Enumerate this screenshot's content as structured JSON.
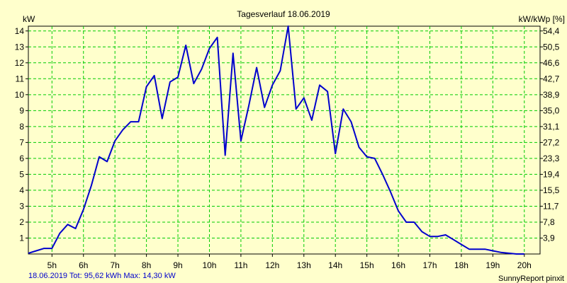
{
  "chart_data": {
    "type": "line",
    "title": "Tagesverlauf 18.06.2019",
    "y_left_label": "kW",
    "y_right_label": "kW/kWp [%]",
    "x_tick_labels": [
      "5h",
      "6h",
      "7h",
      "8h",
      "9h",
      "10h",
      "11h",
      "12h",
      "13h",
      "14h",
      "15h",
      "16h",
      "17h",
      "18h",
      "19h",
      "20h"
    ],
    "y_left_ticks": [
      "1",
      "2",
      "3",
      "4",
      "5",
      "6",
      "7",
      "8",
      "9",
      "10",
      "11",
      "12",
      "13",
      "14"
    ],
    "y_right_ticks": [
      "3,9",
      "7,8",
      "11,7",
      "15,5",
      "19,4",
      "23,3",
      "27,2",
      "31,1",
      "35,0",
      "38,9",
      "42,7",
      "46,6",
      "50,5",
      "54,4"
    ],
    "xlim": [
      4.25,
      20.5
    ],
    "ylim": [
      0,
      14.3
    ],
    "grid": true,
    "line_color": "#0000cc",
    "grid_color": "#00cc00",
    "background": "#ffffcc",
    "series": [
      {
        "points": [
          [
            4.25,
            0.05
          ],
          [
            4.5,
            0.2
          ],
          [
            4.75,
            0.35
          ],
          [
            5.0,
            0.35
          ],
          [
            5.25,
            1.3
          ],
          [
            5.5,
            1.85
          ],
          [
            5.75,
            1.6
          ],
          [
            6.0,
            2.8
          ],
          [
            6.25,
            4.3
          ],
          [
            6.5,
            6.1
          ],
          [
            6.75,
            5.8
          ],
          [
            7.0,
            7.1
          ],
          [
            7.25,
            7.8
          ],
          [
            7.5,
            8.3
          ],
          [
            7.75,
            8.3
          ],
          [
            8.0,
            10.5
          ],
          [
            8.25,
            11.2
          ],
          [
            8.5,
            8.5
          ],
          [
            8.75,
            10.8
          ],
          [
            9.0,
            11.1
          ],
          [
            9.25,
            13.1
          ],
          [
            9.5,
            10.7
          ],
          [
            9.75,
            11.6
          ],
          [
            10.0,
            12.9
          ],
          [
            10.25,
            13.6
          ],
          [
            10.5,
            6.2
          ],
          [
            10.75,
            12.6
          ],
          [
            11.0,
            7.1
          ],
          [
            11.25,
            9.3
          ],
          [
            11.5,
            11.7
          ],
          [
            11.75,
            9.2
          ],
          [
            12.0,
            10.6
          ],
          [
            12.25,
            11.5
          ],
          [
            12.5,
            14.3
          ],
          [
            12.75,
            9.1
          ],
          [
            13.0,
            9.8
          ],
          [
            13.25,
            8.4
          ],
          [
            13.5,
            10.6
          ],
          [
            13.75,
            10.2
          ],
          [
            14.0,
            6.3
          ],
          [
            14.25,
            9.1
          ],
          [
            14.5,
            8.3
          ],
          [
            14.75,
            6.7
          ],
          [
            15.0,
            6.1
          ],
          [
            15.25,
            6.0
          ],
          [
            15.5,
            5.0
          ],
          [
            15.75,
            3.9
          ],
          [
            16.0,
            2.7
          ],
          [
            16.25,
            2.0
          ],
          [
            16.5,
            2.0
          ],
          [
            16.75,
            1.4
          ],
          [
            17.0,
            1.1
          ],
          [
            17.25,
            1.1
          ],
          [
            17.5,
            1.2
          ],
          [
            17.75,
            0.9
          ],
          [
            18.0,
            0.6
          ],
          [
            18.25,
            0.3
          ],
          [
            18.5,
            0.3
          ],
          [
            18.75,
            0.3
          ],
          [
            19.0,
            0.2
          ],
          [
            19.25,
            0.1
          ],
          [
            19.5,
            0.05
          ],
          [
            19.75,
            0.0
          ],
          [
            20.0,
            0.0
          ]
        ]
      }
    ],
    "footer_left": "18.06.2019 Tot: 95,62 kWh Max: 14,30 kW",
    "footer_right": "SunnyReport pinxit"
  }
}
